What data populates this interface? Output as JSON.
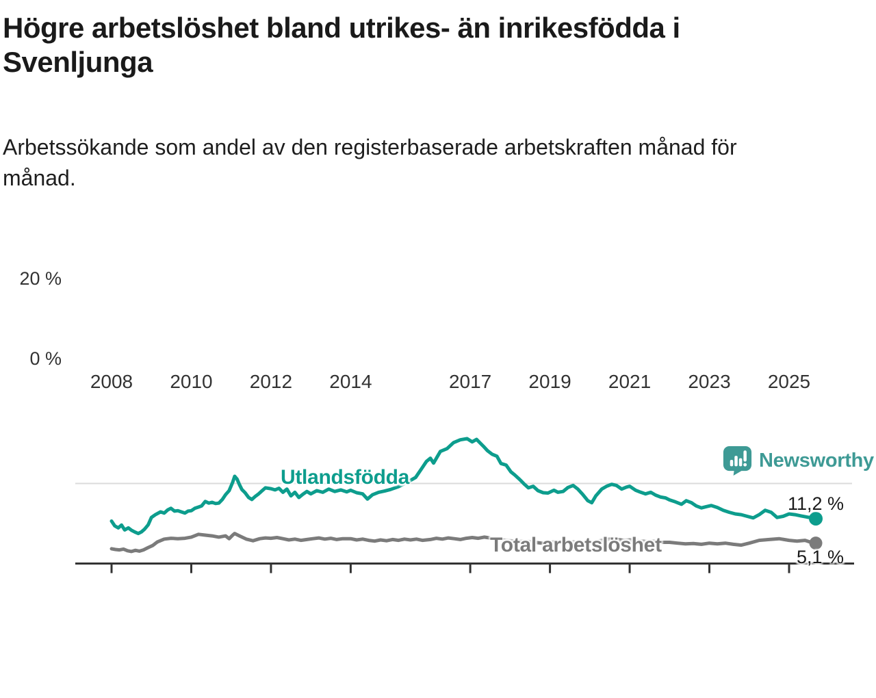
{
  "title": "Högre arbetslöshet bland utrikes- än inrikesfödda i\nSvenljunga",
  "subtitle": "Arbetssökande som andel av den registerbaserade arbetskraften månad för\nmånad.",
  "logo": {
    "text": "Newsworthy",
    "color": "#3E9A95"
  },
  "colors": {
    "accent_teal": "#0D9D8D",
    "series_gray": "#7B7B7B",
    "axis": "#333333",
    "gridline": "#DBDBDB",
    "title_text": "#1A1A1A"
  },
  "chart_data": {
    "type": "line",
    "unit": "%",
    "grid": "horizontal gridline at 20% only",
    "legend_position": "inline-labels-on-lines",
    "x_axis": {
      "ticks": [
        2008,
        2010,
        2012,
        2014,
        2017,
        2019,
        2021,
        2023,
        2025
      ],
      "range_years": [
        2007.1,
        2026.6
      ]
    },
    "y_axis": {
      "ticks": [
        {
          "value": 0,
          "label": "0 %"
        },
        {
          "value": 20,
          "label": "20 %"
        }
      ],
      "range": [
        0,
        32
      ],
      "gridlines": [
        20
      ]
    },
    "series": [
      {
        "name": "Utlandsfödda",
        "color": "#0D9D8D",
        "end_label": "11,2 %",
        "end_value": 11.2,
        "points": [
          [
            2008.0,
            10.6
          ],
          [
            2008.08,
            9.4
          ],
          [
            2008.17,
            8.9
          ],
          [
            2008.25,
            9.6
          ],
          [
            2008.33,
            8.4
          ],
          [
            2008.42,
            8.9
          ],
          [
            2008.5,
            8.3
          ],
          [
            2008.58,
            7.9
          ],
          [
            2008.67,
            7.5
          ],
          [
            2008.75,
            7.9
          ],
          [
            2008.83,
            8.6
          ],
          [
            2008.92,
            9.7
          ],
          [
            2009.0,
            11.5
          ],
          [
            2009.1,
            12.2
          ],
          [
            2009.23,
            12.9
          ],
          [
            2009.32,
            12.6
          ],
          [
            2009.41,
            13.4
          ],
          [
            2009.49,
            13.8
          ],
          [
            2009.58,
            13.1
          ],
          [
            2009.66,
            13.2
          ],
          [
            2009.75,
            12.9
          ],
          [
            2009.84,
            12.6
          ],
          [
            2009.92,
            13.1
          ],
          [
            2010.0,
            13.2
          ],
          [
            2010.09,
            13.8
          ],
          [
            2010.18,
            14.1
          ],
          [
            2010.26,
            14.4
          ],
          [
            2010.35,
            15.5
          ],
          [
            2010.44,
            15.1
          ],
          [
            2010.52,
            15.3
          ],
          [
            2010.61,
            15.0
          ],
          [
            2010.69,
            15.1
          ],
          [
            2010.78,
            16.0
          ],
          [
            2010.86,
            17.2
          ],
          [
            2010.95,
            18.2
          ],
          [
            2011.04,
            20.3
          ],
          [
            2011.09,
            21.8
          ],
          [
            2011.15,
            21.1
          ],
          [
            2011.21,
            19.7
          ],
          [
            2011.27,
            18.5
          ],
          [
            2011.35,
            17.7
          ],
          [
            2011.44,
            16.5
          ],
          [
            2011.52,
            16.0
          ],
          [
            2011.61,
            16.8
          ],
          [
            2011.69,
            17.4
          ],
          [
            2011.78,
            18.2
          ],
          [
            2011.86,
            18.9
          ],
          [
            2012.0,
            18.7
          ],
          [
            2012.1,
            18.4
          ],
          [
            2012.2,
            18.8
          ],
          [
            2012.3,
            17.8
          ],
          [
            2012.4,
            18.6
          ],
          [
            2012.5,
            16.9
          ],
          [
            2012.6,
            17.8
          ],
          [
            2012.7,
            16.5
          ],
          [
            2012.8,
            17.3
          ],
          [
            2012.9,
            18.0
          ],
          [
            2013.0,
            17.4
          ],
          [
            2013.15,
            18.2
          ],
          [
            2013.3,
            17.8
          ],
          [
            2013.45,
            18.6
          ],
          [
            2013.6,
            18.0
          ],
          [
            2013.75,
            18.4
          ],
          [
            2013.9,
            17.9
          ],
          [
            2014.0,
            18.3
          ],
          [
            2014.15,
            17.7
          ],
          [
            2014.3,
            17.4
          ],
          [
            2014.42,
            16.1
          ],
          [
            2014.55,
            17.2
          ],
          [
            2014.7,
            17.8
          ],
          [
            2014.85,
            18.1
          ],
          [
            2015.0,
            18.5
          ],
          [
            2015.2,
            19.2
          ],
          [
            2015.4,
            20.2
          ],
          [
            2015.63,
            21.5
          ],
          [
            2015.8,
            24.0
          ],
          [
            2015.9,
            25.5
          ],
          [
            2016.0,
            26.3
          ],
          [
            2016.08,
            25.1
          ],
          [
            2016.25,
            28.0
          ],
          [
            2016.42,
            28.7
          ],
          [
            2016.58,
            30.2
          ],
          [
            2016.75,
            30.9
          ],
          [
            2016.92,
            31.2
          ],
          [
            2017.05,
            30.4
          ],
          [
            2017.16,
            31.0
          ],
          [
            2017.33,
            29.3
          ],
          [
            2017.43,
            28.2
          ],
          [
            2017.55,
            27.3
          ],
          [
            2017.67,
            26.8
          ],
          [
            2017.77,
            25.0
          ],
          [
            2017.9,
            24.6
          ],
          [
            2018.02,
            22.9
          ],
          [
            2018.12,
            22.1
          ],
          [
            2018.24,
            21.0
          ],
          [
            2018.36,
            19.8
          ],
          [
            2018.46,
            18.9
          ],
          [
            2018.58,
            19.3
          ],
          [
            2018.7,
            18.2
          ],
          [
            2018.83,
            17.7
          ],
          [
            2018.95,
            17.6
          ],
          [
            2019.1,
            18.3
          ],
          [
            2019.2,
            17.8
          ],
          [
            2019.33,
            18.0
          ],
          [
            2019.45,
            19.0
          ],
          [
            2019.58,
            19.5
          ],
          [
            2019.7,
            18.6
          ],
          [
            2019.82,
            17.3
          ],
          [
            2019.95,
            15.7
          ],
          [
            2020.05,
            15.2
          ],
          [
            2020.15,
            16.9
          ],
          [
            2020.3,
            18.6
          ],
          [
            2020.42,
            19.3
          ],
          [
            2020.55,
            19.8
          ],
          [
            2020.67,
            19.5
          ],
          [
            2020.8,
            18.6
          ],
          [
            2020.92,
            19.1
          ],
          [
            2021.0,
            19.3
          ],
          [
            2021.15,
            18.3
          ],
          [
            2021.28,
            17.8
          ],
          [
            2021.4,
            17.4
          ],
          [
            2021.53,
            17.8
          ],
          [
            2021.65,
            17.1
          ],
          [
            2021.78,
            16.6
          ],
          [
            2021.9,
            16.4
          ],
          [
            2022.0,
            15.9
          ],
          [
            2022.15,
            15.4
          ],
          [
            2022.3,
            14.8
          ],
          [
            2022.42,
            15.7
          ],
          [
            2022.55,
            15.2
          ],
          [
            2022.67,
            14.4
          ],
          [
            2022.8,
            13.9
          ],
          [
            2022.92,
            14.2
          ],
          [
            2023.05,
            14.5
          ],
          [
            2023.2,
            14.0
          ],
          [
            2023.35,
            13.3
          ],
          [
            2023.5,
            12.8
          ],
          [
            2023.65,
            12.4
          ],
          [
            2023.8,
            12.2
          ],
          [
            2023.95,
            11.8
          ],
          [
            2024.1,
            11.4
          ],
          [
            2024.25,
            12.2
          ],
          [
            2024.4,
            13.3
          ],
          [
            2024.55,
            12.8
          ],
          [
            2024.7,
            11.5
          ],
          [
            2024.85,
            11.8
          ],
          [
            2025.0,
            12.4
          ],
          [
            2025.15,
            12.2
          ],
          [
            2025.3,
            11.9
          ],
          [
            2025.45,
            11.6
          ],
          [
            2025.58,
            11.4
          ],
          [
            2025.67,
            11.2
          ]
        ]
      },
      {
        "name": "Total arbetslöshet",
        "color": "#7B7B7B",
        "end_label": "5,1 %",
        "end_value": 5.1,
        "points": [
          [
            2008.0,
            3.7
          ],
          [
            2008.1,
            3.5
          ],
          [
            2008.2,
            3.4
          ],
          [
            2008.3,
            3.6
          ],
          [
            2008.4,
            3.2
          ],
          [
            2008.5,
            3.0
          ],
          [
            2008.6,
            3.3
          ],
          [
            2008.7,
            3.1
          ],
          [
            2008.8,
            3.4
          ],
          [
            2008.92,
            4.0
          ],
          [
            2009.03,
            4.5
          ],
          [
            2009.15,
            5.4
          ],
          [
            2009.32,
            6.1
          ],
          [
            2009.49,
            6.3
          ],
          [
            2009.66,
            6.2
          ],
          [
            2009.84,
            6.3
          ],
          [
            2010.0,
            6.6
          ],
          [
            2010.18,
            7.3
          ],
          [
            2010.35,
            7.1
          ],
          [
            2010.52,
            6.9
          ],
          [
            2010.69,
            6.6
          ],
          [
            2010.86,
            6.9
          ],
          [
            2010.95,
            6.2
          ],
          [
            2011.04,
            7.1
          ],
          [
            2011.09,
            7.5
          ],
          [
            2011.21,
            6.9
          ],
          [
            2011.38,
            6.1
          ],
          [
            2011.55,
            5.7
          ],
          [
            2011.72,
            6.2
          ],
          [
            2011.86,
            6.4
          ],
          [
            2012.0,
            6.3
          ],
          [
            2012.15,
            6.5
          ],
          [
            2012.3,
            6.2
          ],
          [
            2012.45,
            5.9
          ],
          [
            2012.6,
            6.1
          ],
          [
            2012.75,
            5.8
          ],
          [
            2012.9,
            6.0
          ],
          [
            2013.05,
            6.2
          ],
          [
            2013.2,
            6.4
          ],
          [
            2013.35,
            6.1
          ],
          [
            2013.5,
            6.3
          ],
          [
            2013.65,
            6.0
          ],
          [
            2013.8,
            6.2
          ],
          [
            2014.0,
            6.2
          ],
          [
            2014.15,
            5.9
          ],
          [
            2014.3,
            6.1
          ],
          [
            2014.45,
            5.8
          ],
          [
            2014.6,
            5.6
          ],
          [
            2014.75,
            5.9
          ],
          [
            2014.9,
            5.7
          ],
          [
            2015.05,
            6.0
          ],
          [
            2015.2,
            5.8
          ],
          [
            2015.35,
            6.1
          ],
          [
            2015.5,
            5.9
          ],
          [
            2015.65,
            6.1
          ],
          [
            2015.8,
            5.8
          ],
          [
            2016.0,
            6.0
          ],
          [
            2016.15,
            6.3
          ],
          [
            2016.3,
            6.1
          ],
          [
            2016.45,
            6.4
          ],
          [
            2016.6,
            6.2
          ],
          [
            2016.75,
            6.0
          ],
          [
            2016.9,
            6.3
          ],
          [
            2017.05,
            6.5
          ],
          [
            2017.2,
            6.3
          ],
          [
            2017.35,
            6.6
          ],
          [
            2017.5,
            6.4
          ],
          [
            2017.65,
            6.1
          ],
          [
            2017.8,
            5.9
          ],
          [
            2018.0,
            5.7
          ],
          [
            2018.2,
            5.5
          ],
          [
            2018.4,
            5.6
          ],
          [
            2018.6,
            5.3
          ],
          [
            2018.8,
            5.1
          ],
          [
            2019.0,
            5.3
          ],
          [
            2019.2,
            5.5
          ],
          [
            2019.4,
            5.2
          ],
          [
            2019.6,
            5.4
          ],
          [
            2019.8,
            5.0
          ],
          [
            2020.0,
            5.1
          ],
          [
            2020.2,
            5.6
          ],
          [
            2020.4,
            5.9
          ],
          [
            2020.55,
            6.2
          ],
          [
            2020.7,
            6.0
          ],
          [
            2020.85,
            5.8
          ],
          [
            2021.0,
            5.9
          ],
          [
            2021.2,
            5.7
          ],
          [
            2021.4,
            5.5
          ],
          [
            2021.6,
            5.6
          ],
          [
            2021.8,
            5.3
          ],
          [
            2022.0,
            5.3
          ],
          [
            2022.2,
            5.1
          ],
          [
            2022.4,
            4.9
          ],
          [
            2022.6,
            5.0
          ],
          [
            2022.8,
            4.8
          ],
          [
            2023.0,
            5.1
          ],
          [
            2023.2,
            4.9
          ],
          [
            2023.4,
            5.1
          ],
          [
            2023.6,
            4.8
          ],
          [
            2023.8,
            4.6
          ],
          [
            2024.0,
            5.1
          ],
          [
            2024.25,
            5.8
          ],
          [
            2024.5,
            6.0
          ],
          [
            2024.75,
            6.2
          ],
          [
            2025.0,
            5.8
          ],
          [
            2025.2,
            5.6
          ],
          [
            2025.4,
            5.8
          ],
          [
            2025.55,
            5.3
          ],
          [
            2025.67,
            5.1
          ]
        ]
      }
    ]
  }
}
